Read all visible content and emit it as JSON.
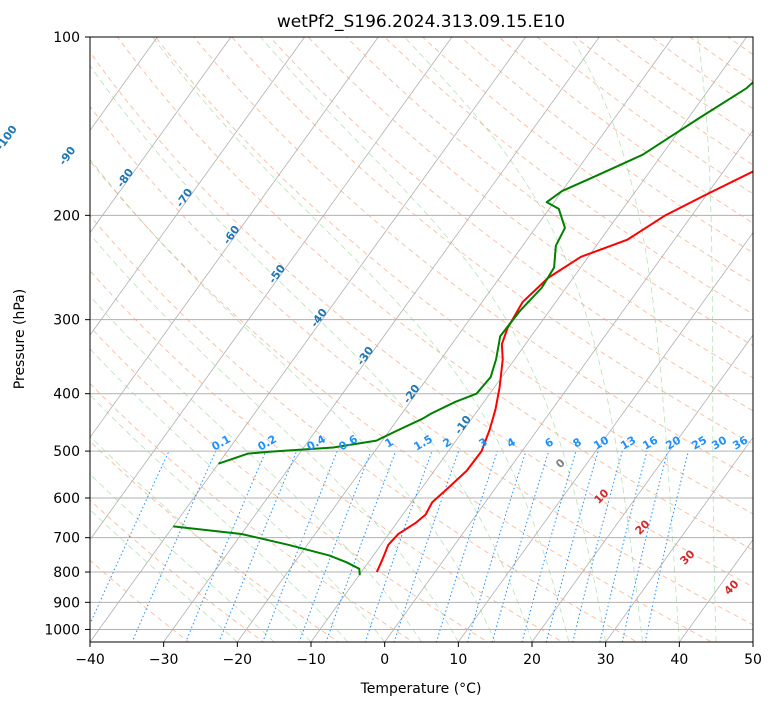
{
  "chart_data": {
    "type": "line",
    "title": "wetPf2_S196.2024.313.09.15.E10",
    "xlabel": "Temperature (°C)",
    "ylabel": "Pressure (hPa)",
    "xlim": [
      -40,
      50
    ],
    "ylim": [
      1050,
      100
    ],
    "y_scale": "log",
    "x_ticks": [
      -40,
      -30,
      -20,
      -10,
      0,
      10,
      20,
      30,
      40,
      50
    ],
    "y_ticks": [
      100,
      200,
      300,
      400,
      500,
      600,
      700,
      800,
      900,
      1000
    ],
    "grid": true,
    "colors": {
      "temperature": "#ff0000",
      "dewpoint": "#008000",
      "isotherm_labels": "#1f77b4",
      "mixing_ratio": "#1e90ff",
      "moist_adiabat_labels": "#d62728",
      "grid": "#b0b0b0"
    },
    "series": [
      {
        "points": [
          [
            -7.9,
            800
          ],
          [
            -8.4,
            760
          ],
          [
            -9.0,
            720
          ],
          [
            -8.7,
            690
          ],
          [
            -7.4,
            660
          ],
          [
            -6.9,
            640
          ],
          [
            -7.2,
            610
          ],
          [
            -6.5,
            580
          ],
          [
            -5.6,
            540
          ],
          [
            -5.5,
            500
          ],
          [
            -6.5,
            460
          ],
          [
            -7.7,
            425
          ],
          [
            -9.3,
            390
          ],
          [
            -11.6,
            350
          ],
          [
            -13.2,
            330
          ],
          [
            -14.0,
            310
          ],
          [
            -14.5,
            280
          ],
          [
            -13.4,
            255
          ],
          [
            -11.0,
            235
          ],
          [
            -6.4,
            220
          ],
          [
            -3.6,
            200
          ],
          [
            -0.2,
            185
          ],
          [
            5.0,
            165
          ],
          [
            9.0,
            145
          ],
          [
            13.5,
            128
          ],
          [
            19.5,
            117
          ],
          [
            22.0,
            110
          ],
          [
            22.7,
            102
          ],
          [
            22.7,
            100
          ]
        ]
      },
      {
        "points": [
          [
            -9.9,
            810
          ],
          [
            -10.6,
            790
          ],
          [
            -13.0,
            770
          ],
          [
            -16.0,
            750
          ],
          [
            -22.5,
            720
          ],
          [
            -30.0,
            690
          ],
          [
            -40.0,
            670
          ]
        ]
      },
      {
        "points": [
          [
            -40.0,
            525
          ],
          [
            -37.0,
            505
          ],
          [
            -34.0,
            501
          ],
          [
            -26.0,
            493
          ],
          [
            -20.8,
            480
          ],
          [
            -19.0,
            462
          ],
          [
            -16.7,
            441
          ],
          [
            -16.0,
            432
          ],
          [
            -13.9,
            413
          ],
          [
            -11.8,
            400
          ],
          [
            -11.5,
            375
          ],
          [
            -12.5,
            350
          ],
          [
            -14.2,
            320
          ],
          [
            -14.0,
            290
          ],
          [
            -13.3,
            265
          ],
          [
            -13.6,
            245
          ],
          [
            -15.5,
            225
          ],
          [
            -16.0,
            210
          ],
          [
            -18.7,
            195
          ],
          [
            -21.0,
            190
          ],
          [
            -20.0,
            182
          ],
          [
            -17.0,
            172
          ],
          [
            -12.6,
            158
          ],
          [
            -8.5,
            137
          ],
          [
            -5.0,
            122
          ],
          [
            -4.0,
            113
          ],
          [
            -0.9,
            105
          ],
          [
            -0.5,
            100
          ]
        ]
      }
    ],
    "isotherm_labels": [
      "-100",
      "-90",
      "-80",
      "-70",
      "-60",
      "-50",
      "-40",
      "-30",
      "-20",
      "-10"
    ],
    "mixing_ratio_labels": [
      "0.1",
      "0.2",
      "0.4",
      "0.6",
      "1",
      "1.5",
      "2",
      "3",
      "4",
      "6",
      "8",
      "10",
      "13",
      "16",
      "20",
      "25",
      "30",
      "36"
    ],
    "moist_adiabat_labels": [
      "0",
      "10",
      "20",
      "30",
      "40"
    ]
  }
}
